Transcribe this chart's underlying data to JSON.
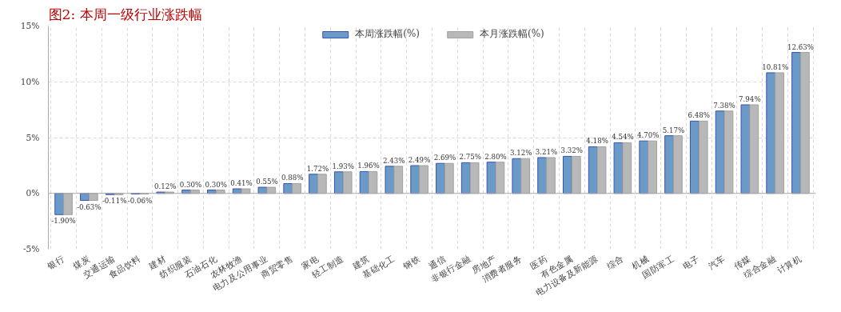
{
  "chart_data": {
    "type": "bar",
    "title": "图2:  本周一级行业涨跌幅",
    "categories": [
      "银行",
      "煤炭",
      "交通运输",
      "食品饮料",
      "建材",
      "纺织服装",
      "石油石化",
      "农林牧渔",
      "电力及公用事业",
      "商贸零售",
      "家电",
      "轻工制造",
      "建筑",
      "基础化工",
      "钢铁",
      "通信",
      "非银行金融",
      "房地产",
      "消费者服务",
      "医药",
      "有色金属",
      "电力设备及新能源",
      "综合",
      "机械",
      "国防军工",
      "电子",
      "汽车",
      "传媒",
      "综合金融",
      "计算机"
    ],
    "series": [
      {
        "name": "本周涨跌幅(%)",
        "color": "#6a9bc8",
        "values": [
          -1.9,
          -0.63,
          -0.11,
          -0.06,
          0.12,
          0.3,
          0.3,
          0.41,
          0.55,
          0.88,
          1.72,
          1.93,
          1.96,
          2.43,
          2.49,
          2.69,
          2.75,
          2.8,
          3.12,
          3.21,
          3.32,
          4.18,
          4.54,
          4.7,
          5.17,
          6.48,
          7.38,
          7.94,
          10.81,
          12.63
        ],
        "value_labels": [
          "-1.90%",
          "-0.63%",
          "-0.11%",
          "-0.06%",
          "0.12%",
          "0.30%",
          "0.30%",
          "0.41%",
          "0.55%",
          "0.88%",
          "1.72%",
          "1.93%",
          "1.96%",
          "2.43%",
          "2.49%",
          "2.69%",
          "2.75%",
          "2.80%",
          "3.12%",
          "3.21%",
          "3.32%",
          "4.18%",
          "4.54%",
          "4.70%",
          "5.17%",
          "6.48%",
          "7.38%",
          "7.94%",
          "10.81%",
          "12.63%"
        ]
      },
      {
        "name": "本月涨跌幅(%)",
        "color": "#b8b8b8",
        "values": [
          -1.9,
          -0.63,
          -0.11,
          -0.06,
          0.12,
          0.3,
          0.3,
          0.41,
          0.55,
          0.88,
          1.72,
          1.93,
          1.96,
          2.43,
          2.49,
          2.69,
          2.75,
          2.8,
          3.12,
          3.21,
          3.32,
          4.18,
          4.54,
          4.7,
          5.17,
          6.48,
          7.38,
          7.94,
          10.81,
          12.63
        ]
      }
    ],
    "ylim": [
      -5,
      15
    ],
    "yticks": [
      {
        "value": -5,
        "label": "-5%"
      },
      {
        "value": 0,
        "label": "0%"
      },
      {
        "value": 5,
        "label": "5%"
      },
      {
        "value": 10,
        "label": "10%"
      },
      {
        "value": 15,
        "label": "15%"
      }
    ],
    "grid": true,
    "legend": "top"
  }
}
